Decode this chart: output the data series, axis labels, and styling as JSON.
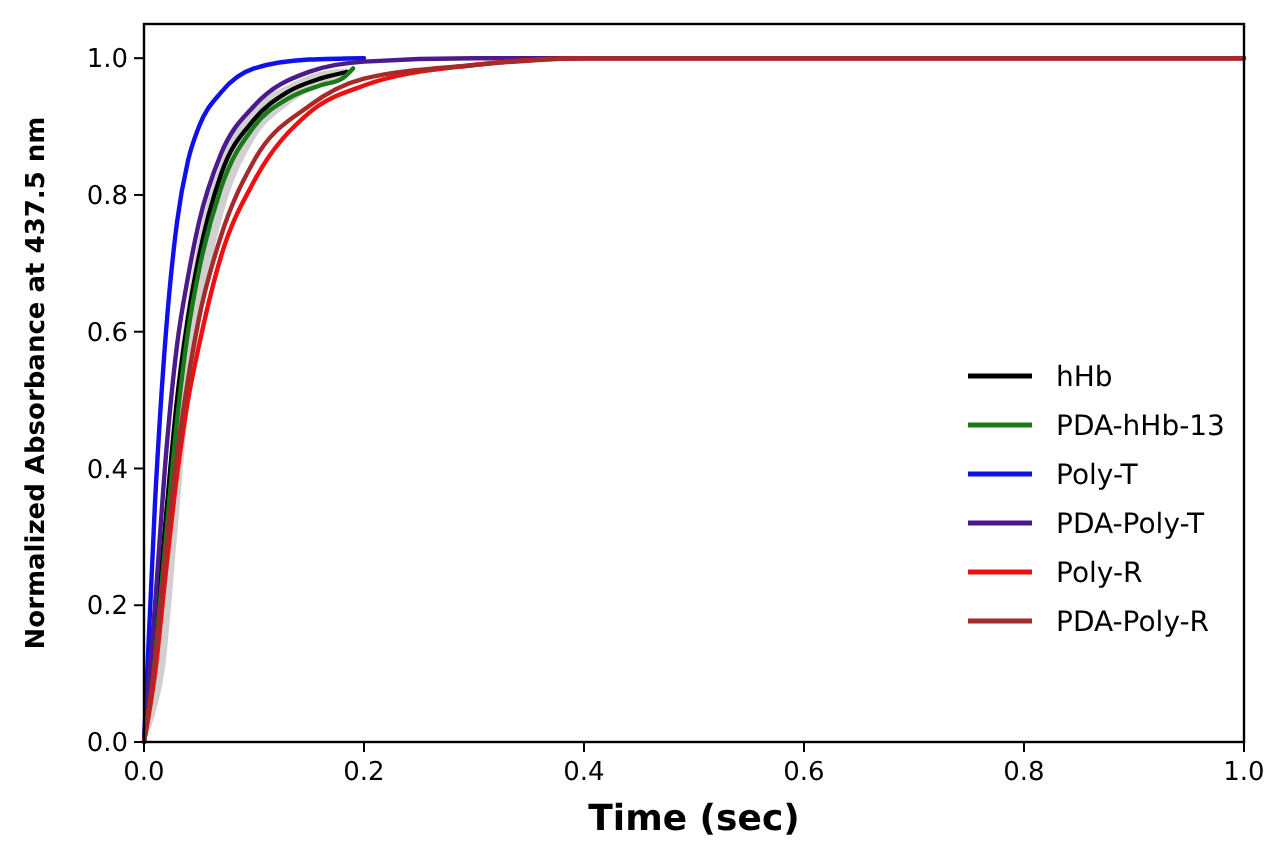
{
  "chart_data": {
    "type": "line",
    "xlabel": "Time (sec)",
    "ylabel": "Normalized Absorbance at 437.5 nm",
    "xlim": [
      0,
      1
    ],
    "ylim": [
      0,
      1.05
    ],
    "xticks": [
      {
        "value": 0,
        "label": "0.0"
      },
      0.2,
      0.4,
      0.6,
      0.8,
      {
        "value": 1,
        "label": "1.0"
      }
    ],
    "yticks": [
      {
        "value": 0,
        "label": "0.0"
      },
      0.2,
      0.4,
      0.6,
      0.8,
      {
        "value": 1,
        "label": "1.0"
      }
    ],
    "grid": false,
    "legend": "right",
    "line_style": "solid",
    "marker": "none",
    "series": [
      {
        "name": "hHb",
        "color": "#000000",
        "x": [
          0,
          0.01,
          0.02,
          0.03,
          0.04,
          0.05,
          0.07,
          0.1,
          0.13,
          0.16,
          0.185
        ],
        "values": [
          0,
          0.15,
          0.33,
          0.5,
          0.62,
          0.71,
          0.83,
          0.91,
          0.95,
          0.97,
          0.98
        ],
        "lower": [
          0,
          0.04,
          0.12,
          0.3,
          0.48,
          0.6,
          0.76,
          0.88,
          0.93,
          0.96,
          0.975
        ],
        "upper": [
          0,
          0.18,
          0.36,
          0.53,
          0.65,
          0.74,
          0.85,
          0.93,
          0.96,
          0.98,
          0.985
        ]
      },
      {
        "name": "PDA-hHb-13",
        "color": "#1a7a1a",
        "x": [
          0,
          0.01,
          0.02,
          0.03,
          0.04,
          0.05,
          0.07,
          0.1,
          0.13,
          0.16,
          0.18,
          0.19
        ],
        "values": [
          0,
          0.13,
          0.3,
          0.47,
          0.6,
          0.69,
          0.81,
          0.9,
          0.94,
          0.96,
          0.97,
          0.985
        ]
      },
      {
        "name": "Poly-T",
        "color": "#1010ee",
        "x": [
          0,
          0.01,
          0.02,
          0.03,
          0.04,
          0.05,
          0.07,
          0.1,
          0.15,
          0.2
        ],
        "values": [
          0,
          0.35,
          0.6,
          0.76,
          0.85,
          0.9,
          0.95,
          0.985,
          0.998,
          1
        ]
      },
      {
        "name": "PDA-Poly-T",
        "color": "#4b1a8c",
        "x": [
          0,
          0.01,
          0.02,
          0.03,
          0.04,
          0.05,
          0.07,
          0.1,
          0.15,
          0.2,
          0.3,
          1
        ],
        "values": [
          0,
          0.2,
          0.42,
          0.58,
          0.68,
          0.76,
          0.86,
          0.93,
          0.98,
          0.995,
          1,
          1
        ]
      },
      {
        "name": "Poly-R",
        "color": "#ee1010",
        "x": [
          0,
          0.01,
          0.02,
          0.03,
          0.04,
          0.05,
          0.07,
          0.1,
          0.15,
          0.2,
          0.3,
          0.4,
          1
        ],
        "values": [
          0,
          0.1,
          0.25,
          0.39,
          0.5,
          0.58,
          0.71,
          0.82,
          0.92,
          0.96,
          0.99,
          1,
          1
        ]
      },
      {
        "name": "PDA-Poly-R",
        "color": "#a52a2a",
        "x": [
          0,
          0.01,
          0.02,
          0.03,
          0.04,
          0.05,
          0.07,
          0.1,
          0.15,
          0.2,
          0.3,
          0.4,
          1
        ],
        "values": [
          0,
          0.12,
          0.28,
          0.42,
          0.53,
          0.62,
          0.74,
          0.85,
          0.93,
          0.97,
          0.99,
          1,
          1
        ]
      }
    ]
  }
}
